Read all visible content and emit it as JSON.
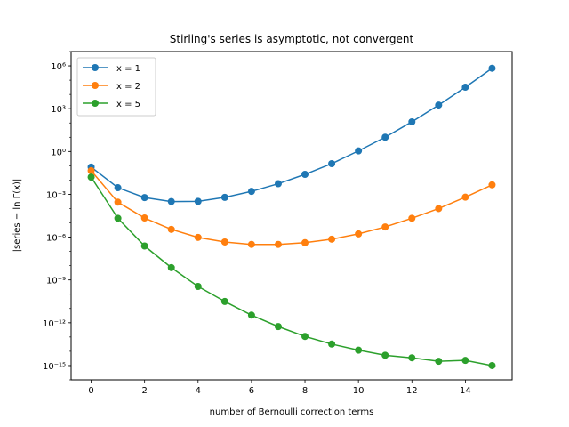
{
  "chart_data": {
    "type": "line",
    "title": "Stirling's series is asymptotic, not convergent",
    "xlabel": "number of Bernoulli correction terms",
    "ylabel": "|series − ln Γ(x)|",
    "y_scale": "log",
    "xlim": [
      -0.75,
      15.75
    ],
    "ylim_exponent": [
      -16,
      7
    ],
    "x_ticks": [
      0,
      2,
      4,
      6,
      8,
      10,
      12,
      14
    ],
    "x_tick_labels": [
      "0",
      "2",
      "4",
      "6",
      "8",
      "10",
      "12",
      "14"
    ],
    "y_tick_exponents": [
      -15,
      -12,
      -9,
      -6,
      -3,
      0,
      3,
      6
    ],
    "y_tick_labels": [
      "10⁻¹⁵",
      "10⁻¹²",
      "10⁻⁹",
      "10⁻⁶",
      "10⁻³",
      "10⁰",
      "10³",
      "10⁶"
    ],
    "grid": false,
    "legend_position": "upper-left",
    "x": [
      0,
      1,
      2,
      3,
      4,
      5,
      6,
      7,
      8,
      9,
      10,
      11,
      12,
      13,
      14,
      15
    ],
    "series": [
      {
        "name": "x = 1",
        "color": "#1f77b4",
        "values": [
          0.081,
          0.0029,
          0.00059,
          0.00031,
          0.00032,
          0.00061,
          0.0016,
          0.0055,
          0.025,
          0.14,
          1.1,
          10,
          120,
          1800,
          32000,
          680000
        ]
      },
      {
        "name": "x = 2",
        "color": "#ff7f0e",
        "values": [
          0.045,
          0.00028,
          2.2e-05,
          3.5e-06,
          9.6e-07,
          4.6e-07,
          3.1e-07,
          3.1e-07,
          4.1e-07,
          7.2e-07,
          1.7e-06,
          5.2e-06,
          2.1e-05,
          0.0001,
          0.00063,
          0.0046
        ]
      },
      {
        "name": "x = 5",
        "color": "#2ca02c",
        "values": [
          0.016,
          2.1e-05,
          2.4e-07,
          7.3e-09,
          3.5e-10,
          3.1e-11,
          3.4e-12,
          5.4e-13,
          1.1e-13,
          3.2e-14,
          1.2e-14,
          5.3e-15,
          3.5e-15,
          2e-15,
          2.3e-15,
          1e-15
        ]
      }
    ]
  }
}
